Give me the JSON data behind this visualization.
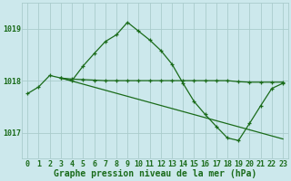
{
  "background_color": "#cce8ec",
  "grid_color": "#aacccc",
  "line_color": "#1a6b1a",
  "marker_color": "#1a6b1a",
  "xlabel": "Graphe pression niveau de la mer (hPa)",
  "ylabel_ticks": [
    1017,
    1018,
    1019
  ],
  "xlim": [
    -0.5,
    23.5
  ],
  "ylim": [
    1016.5,
    1019.5
  ],
  "series1_x": [
    0,
    1,
    2,
    3,
    4,
    5,
    6,
    7,
    8,
    9,
    10,
    11,
    12,
    13,
    14,
    15,
    16,
    17,
    18,
    19,
    20,
    21,
    22,
    23
  ],
  "series1_y": [
    1017.75,
    1017.88,
    1018.1,
    1018.05,
    1018.0,
    1018.28,
    1018.52,
    1018.75,
    1018.88,
    1019.12,
    1018.95,
    1018.78,
    1018.58,
    1018.32,
    1017.95,
    1017.6,
    1017.35,
    1017.12,
    1016.9,
    1016.85,
    1017.18,
    1017.52,
    1017.85,
    1017.95
  ],
  "series2_x": [
    3,
    4,
    5,
    6,
    7,
    8,
    9,
    10,
    11,
    12,
    13,
    14,
    15,
    16,
    17,
    18,
    19,
    20,
    21,
    22,
    23
  ],
  "series2_y": [
    1018.05,
    1018.03,
    1018.02,
    1018.01,
    1018.0,
    1018.0,
    1018.0,
    1018.0,
    1018.0,
    1018.0,
    1018.0,
    1018.0,
    1018.0,
    1018.0,
    1018.0,
    1018.0,
    1017.98,
    1017.97,
    1017.97,
    1017.97,
    1017.97
  ],
  "series3_x": [
    3,
    23
  ],
  "series3_y": [
    1018.05,
    1016.88
  ],
  "tick_fontsize": 6,
  "xlabel_fontsize": 7
}
